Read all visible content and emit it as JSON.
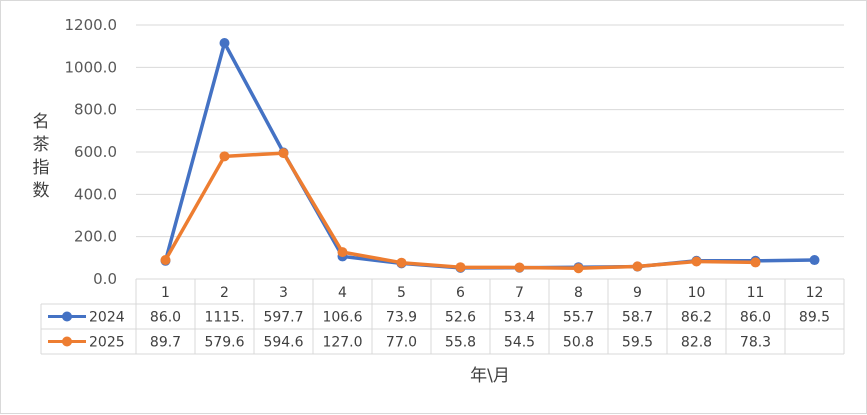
{
  "chart_data": {
    "type": "line",
    "categories": [
      "1",
      "2",
      "3",
      "4",
      "5",
      "6",
      "7",
      "8",
      "9",
      "10",
      "11",
      "12"
    ],
    "series": [
      {
        "name": "2024",
        "color": "#4472C4",
        "values": [
          86.0,
          1115.0,
          597.7,
          106.6,
          73.9,
          52.6,
          53.4,
          55.7,
          58.7,
          86.2,
          86.0,
          89.5
        ],
        "labels": [
          "86.0",
          "1115.",
          "597.7",
          "106.6",
          "73.9",
          "52.6",
          "53.4",
          "55.7",
          "58.7",
          "86.2",
          "86.0",
          "89.5"
        ]
      },
      {
        "name": "2025",
        "color": "#ED7D31",
        "values": [
          89.7,
          579.6,
          594.6,
          127.0,
          77.0,
          55.8,
          54.5,
          50.8,
          59.5,
          82.8,
          78.3,
          null
        ],
        "labels": [
          "89.7",
          "579.6",
          "594.6",
          "127.0",
          "77.0",
          "55.8",
          "54.5",
          "50.8",
          "59.5",
          "82.8",
          "78.3",
          ""
        ]
      }
    ],
    "yticks": [
      "0.0",
      "200.0",
      "400.0",
      "600.0",
      "800.0",
      "1000.0",
      "1200.0"
    ],
    "ylim": [
      0,
      1200
    ],
    "ylabel": "名茶指数",
    "xlabel": "年\\月",
    "grid": true,
    "legend": "data-table"
  }
}
